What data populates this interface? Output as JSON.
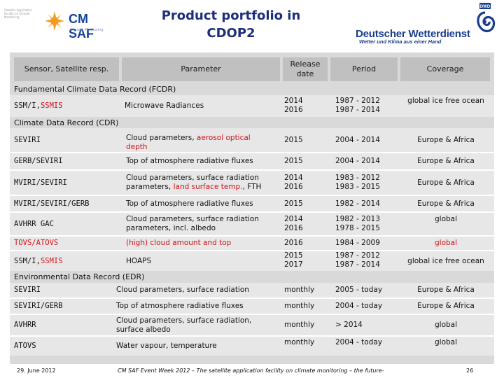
{
  "header": {
    "title_line1": "Product portfolio in",
    "title_line2": "CDOP2",
    "cmsaf_small_text": "Satellite Application Facility on Climate Monitoring",
    "cmsaf_brand": "CM SAF",
    "cmsaf_sub": "Climate Monitoring",
    "dwd_name": "Deutscher Wetterdienst",
    "dwd_slogan": "Wetter und Klima aus einer Hand",
    "dwd_mark": "DWD",
    "colors": {
      "title": "#1d2f7a",
      "brand_blue": "#15449a",
      "sun_orange": "#f29a1a",
      "highlight_red": "#d0121b"
    }
  },
  "table": {
    "columns": {
      "sensor": "Sensor, Satellite resp.",
      "parameter": "Parameter",
      "release": "Release date",
      "period": "Period",
      "coverage": "Coverage"
    },
    "sections": [
      {
        "title": "Fundamental Climate Data Record (FCDR)",
        "rows": [
          {
            "sensor_a": "SSM/I, ",
            "sensor_b": "SSMIS",
            "param_a": "Microwave Radiances",
            "param_b": "",
            "param_c": "",
            "release": "2014\n2016",
            "period": "1987 - 2012\n1987 - 2014",
            "coverage": "global ice free ocean"
          }
        ]
      },
      {
        "title": "Climate Data Record (CDR)",
        "rows": [
          {
            "sensor_a": "SEVIRI",
            "sensor_b": "",
            "param_a": "Cloud parameters, ",
            "param_b": "aerosol optical depth",
            "param_c": "",
            "release": "2015",
            "period": "2004 - 2014",
            "coverage": "Europe & Africa"
          },
          {
            "sensor_a": "GERB/SEVIRI",
            "sensor_b": "",
            "param_a": "Top of atmosphere radiative fluxes",
            "param_b": "",
            "param_c": "",
            "release": "2015",
            "period": "2004 - 2014",
            "coverage": "Europe & Africa"
          },
          {
            "sensor_a": "MVIRI/SEVIRI",
            "sensor_b": "",
            "param_a": "Cloud parameters, surface radiation parameters, ",
            "param_b": "land surface temp.",
            "param_c": ", FTH",
            "release": "2014\n2016",
            "period": "1983 - 2012\n1983 - 2015",
            "coverage": "Europe & Africa"
          },
          {
            "sensor_a": "MVIRI/SEVIRI/GERB",
            "sensor_b": "",
            "param_a": "Top of atmosphere radiative fluxes",
            "param_b": "",
            "param_c": "",
            "release": "2015",
            "period": "1982 - 2014",
            "coverage": "Europe & Africa"
          },
          {
            "sensor_a": "AVHRR GAC",
            "sensor_b": "",
            "param_a": "Cloud parameters, surface radiation parameters, incl. albedo",
            "param_b": "",
            "param_c": "",
            "release": "2014\n2016",
            "period": "1982 - 2013\n1978 - 2015",
            "coverage": "global"
          },
          {
            "sensor_a": "",
            "sensor_b": "TOVS/ATOVS",
            "param_a": "",
            "param_b": "(high) cloud amount and top",
            "param_c": "",
            "release": "2016",
            "period": "1984 - 2009",
            "coverage": "global"
          },
          {
            "sensor_a": "SSM/I, ",
            "sensor_b": "SSMIS",
            "param_a": "HOAPS",
            "param_b": "",
            "param_c": "",
            "release": "2015\n2017",
            "period": "1987 - 2012\n1987 - 2014",
            "coverage": "global ice free ocean"
          }
        ]
      },
      {
        "title": "Environmental Data Record (EDR)",
        "rows": [
          {
            "sensor_a": "SEVIRI",
            "sensor_b": "",
            "param_a": "Cloud parameters, surface radiation",
            "param_b": "",
            "param_c": "",
            "release": "monthly",
            "period": "2005 - today",
            "coverage": "Europe & Africa"
          },
          {
            "sensor_a": "SEVIRI/GERB",
            "sensor_b": "",
            "param_a": "Top of atmosphere radiative fluxes",
            "param_b": "",
            "param_c": "",
            "release": "monthly",
            "period": "2004 - today",
            "coverage": "Europe & Africa"
          },
          {
            "sensor_a": "AVHRR",
            "sensor_b": "",
            "param_a": "Cloud parameters, surface radiation, surface albedo",
            "param_b": "",
            "param_c": "",
            "release": "monthly",
            "period": "> 2014",
            "coverage": "global"
          },
          {
            "sensor_a": "ATOVS",
            "sensor_b": "",
            "param_a": "Water vapour, temperature",
            "param_b": "",
            "param_c": "",
            "release": "monthly",
            "period": "2004 - today",
            "coverage": "global"
          }
        ]
      }
    ]
  },
  "footer": {
    "date": "29. June 2012",
    "event": "CM SAF Event Week 2012 – The satellite application facility on climate monitoring – the future-",
    "page": "26"
  }
}
